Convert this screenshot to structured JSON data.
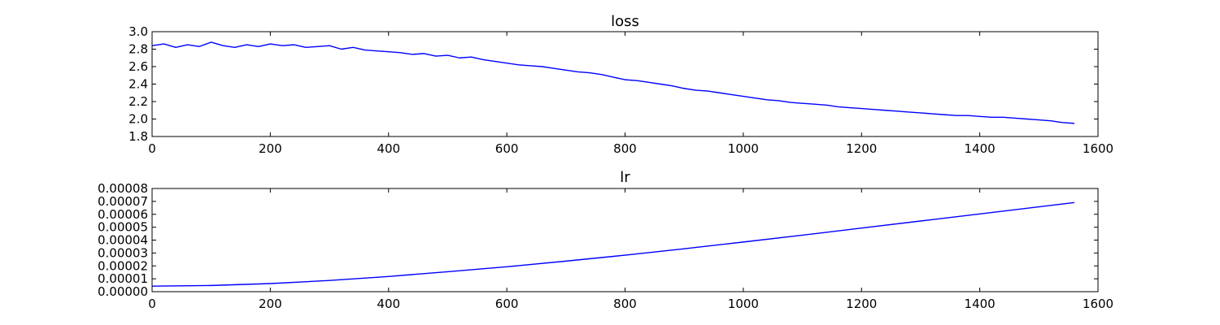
{
  "chart_data": [
    {
      "type": "line",
      "title": "loss",
      "xlabel": "",
      "ylabel": "",
      "xlim": [
        0,
        1600
      ],
      "ylim": [
        1.8,
        3.0
      ],
      "x_ticks": [
        "0",
        "200",
        "400",
        "600",
        "800",
        "1000",
        "1200",
        "1400",
        "1600"
      ],
      "y_ticks": [
        "1.8",
        "2.0",
        "2.2",
        "2.4",
        "2.6",
        "2.8",
        "3.0"
      ],
      "grid": false,
      "color": "#0000ff",
      "series": [
        {
          "x": [
            0,
            20,
            40,
            60,
            80,
            100,
            120,
            140,
            160,
            180,
            200,
            220,
            240,
            260,
            280,
            300,
            320,
            340,
            360,
            380,
            400,
            420,
            440,
            460,
            480,
            500,
            520,
            540,
            560,
            580,
            600,
            620,
            640,
            660,
            680,
            700,
            720,
            740,
            760,
            780,
            800,
            820,
            840,
            860,
            880,
            900,
            920,
            940,
            960,
            980,
            1000,
            1020,
            1040,
            1060,
            1080,
            1100,
            1120,
            1140,
            1160,
            1180,
            1200,
            1220,
            1240,
            1260,
            1280,
            1300,
            1320,
            1340,
            1360,
            1380,
            1400,
            1420,
            1440,
            1460,
            1480,
            1500,
            1520,
            1540,
            1560
          ],
          "y": [
            2.84,
            2.86,
            2.82,
            2.85,
            2.83,
            2.88,
            2.84,
            2.82,
            2.85,
            2.83,
            2.86,
            2.84,
            2.85,
            2.82,
            2.83,
            2.84,
            2.8,
            2.82,
            2.79,
            2.78,
            2.77,
            2.76,
            2.74,
            2.75,
            2.72,
            2.73,
            2.7,
            2.71,
            2.68,
            2.66,
            2.64,
            2.62,
            2.61,
            2.6,
            2.58,
            2.56,
            2.54,
            2.53,
            2.51,
            2.48,
            2.45,
            2.44,
            2.42,
            2.4,
            2.38,
            2.35,
            2.33,
            2.32,
            2.3,
            2.28,
            2.26,
            2.24,
            2.22,
            2.21,
            2.19,
            2.18,
            2.17,
            2.16,
            2.14,
            2.13,
            2.12,
            2.11,
            2.1,
            2.09,
            2.08,
            2.07,
            2.06,
            2.05,
            2.04,
            2.04,
            2.03,
            2.02,
            2.02,
            2.01,
            2.0,
            1.99,
            1.98,
            1.96,
            1.95
          ]
        }
      ]
    },
    {
      "type": "line",
      "title": "lr",
      "xlabel": "",
      "ylabel": "",
      "xlim": [
        0,
        1600
      ],
      "ylim": [
        0.0,
        8e-05
      ],
      "x_ticks": [
        "0",
        "200",
        "400",
        "600",
        "800",
        "1000",
        "1200",
        "1400",
        "1600"
      ],
      "y_ticks": [
        "0.00000",
        "0.00001",
        "0.00002",
        "0.00003",
        "0.00004",
        "0.00005",
        "0.00006",
        "0.00007",
        "0.00008"
      ],
      "grid": false,
      "color": "#0000ff",
      "series": [
        {
          "x": [
            0,
            100,
            200,
            300,
            400,
            500,
            600,
            700,
            800,
            900,
            1000,
            1100,
            1200,
            1300,
            1400,
            1500,
            1560
          ],
          "y": [
            4.3e-06,
            4.8e-06,
            6.3e-06,
            8.7e-06,
            1.18e-05,
            1.55e-05,
            1.93e-05,
            2.37e-05,
            2.83e-05,
            3.33e-05,
            3.85e-05,
            4.38e-05,
            4.93e-05,
            5.48e-05,
            6.03e-05,
            6.58e-05,
            6.91e-05
          ]
        }
      ]
    }
  ]
}
